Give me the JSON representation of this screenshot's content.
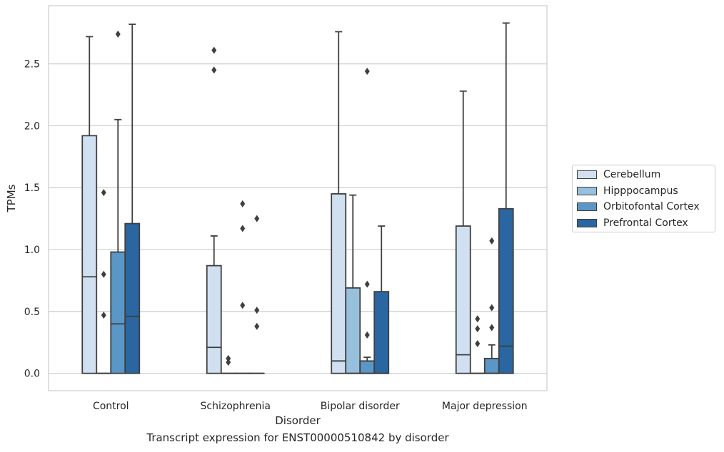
{
  "chart_data": {
    "type": "box",
    "xlabel": "Disorder",
    "ylabel": "TPMs",
    "ylim": [
      -0.14,
      2.97
    ],
    "yticks": [
      "0.0",
      "0.5",
      "1.0",
      "1.5",
      "2.0",
      "2.5"
    ],
    "grid": "horizontal",
    "legend_position": "right",
    "categories": [
      "Control",
      "Schizophrenia",
      "Bipolar disorder",
      "Major depression"
    ],
    "series": [
      {
        "name": "Cerebellum",
        "color": "#d0e0f0",
        "boxes": [
          {
            "whislo": 0.0,
            "q1": 0.0,
            "median": 0.78,
            "q3": 1.92,
            "whishi": 2.72,
            "fliers": []
          },
          {
            "whislo": 0.0,
            "q1": 0.0,
            "median": 0.21,
            "q3": 0.87,
            "whishi": 1.11,
            "fliers": [
              2.45,
              2.61
            ]
          },
          {
            "whislo": 0.0,
            "q1": 0.0,
            "median": 0.1,
            "q3": 1.45,
            "whishi": 2.76,
            "fliers": []
          },
          {
            "whislo": 0.0,
            "q1": 0.0,
            "median": 0.15,
            "q3": 1.19,
            "whishi": 2.28,
            "fliers": []
          }
        ]
      },
      {
        "name": "Hipppocampus",
        "color": "#97c0dd",
        "boxes": [
          {
            "whislo": 0.0,
            "q1": 0.0,
            "median": 0.0,
            "q3": 0.0,
            "whishi": 0.0,
            "fliers": [
              0.47,
              0.8,
              1.46
            ]
          },
          {
            "whislo": 0.0,
            "q1": 0.0,
            "median": 0.0,
            "q3": 0.0,
            "whishi": 0.0,
            "fliers": [
              0.09,
              0.12
            ]
          },
          {
            "whislo": 0.0,
            "q1": 0.0,
            "median": 0.0,
            "q3": 0.69,
            "whishi": 1.44,
            "fliers": []
          },
          {
            "whislo": 0.0,
            "q1": 0.0,
            "median": 0.0,
            "q3": 0.0,
            "whishi": 0.0,
            "fliers": [
              0.24,
              0.36,
              0.44
            ]
          }
        ]
      },
      {
        "name": "Orbitofontal Cortex",
        "color": "#5a97c7",
        "boxes": [
          {
            "whislo": 0.0,
            "q1": 0.0,
            "median": 0.4,
            "q3": 0.98,
            "whishi": 2.05,
            "fliers": [
              2.74
            ]
          },
          {
            "whislo": 0.0,
            "q1": 0.0,
            "median": 0.0,
            "q3": 0.0,
            "whishi": 0.0,
            "fliers": [
              0.55,
              1.17,
              1.37
            ]
          },
          {
            "whislo": 0.0,
            "q1": 0.0,
            "median": 0.0,
            "q3": 0.1,
            "whishi": 0.13,
            "fliers": [
              0.31,
              0.72,
              2.44
            ]
          },
          {
            "whislo": 0.0,
            "q1": 0.0,
            "median": 0.0,
            "q3": 0.12,
            "whishi": 0.23,
            "fliers": [
              0.37,
              0.53,
              1.07
            ]
          }
        ]
      },
      {
        "name": "Prefrontal Cortex",
        "color": "#2966a2",
        "boxes": [
          {
            "whislo": 0.0,
            "q1": 0.0,
            "median": 0.46,
            "q3": 1.21,
            "whishi": 2.82,
            "fliers": []
          },
          {
            "whislo": 0.0,
            "q1": 0.0,
            "median": 0.0,
            "q3": 0.0,
            "whishi": 0.0,
            "fliers": [
              0.38,
              0.51,
              1.25
            ]
          },
          {
            "whislo": 0.0,
            "q1": 0.0,
            "median": 0.0,
            "q3": 0.66,
            "whishi": 1.19,
            "fliers": []
          },
          {
            "whislo": 0.0,
            "q1": 0.0,
            "median": 0.22,
            "q3": 1.33,
            "whishi": 2.83,
            "fliers": []
          }
        ]
      }
    ],
    "caption": "Transcript expression for ENST00000510842 by disorder"
  }
}
